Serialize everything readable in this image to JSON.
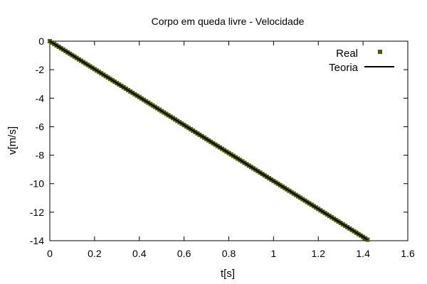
{
  "chart_data": {
    "type": "scatter",
    "title": "Corpo em queda livre - Velocidade",
    "xlabel": "t[s]",
    "ylabel": "v[m/s]",
    "xlim": [
      0,
      1.6
    ],
    "ylim": [
      -14,
      0
    ],
    "x_ticks": [
      "0",
      "0.2",
      "0.4",
      "0.6",
      "0.8",
      "1",
      "1.2",
      "1.4",
      "1.6"
    ],
    "y_ticks": [
      "0",
      "-2",
      "-4",
      "-6",
      "-8",
      "-10",
      "-12",
      "-14"
    ],
    "grid": false,
    "legend_position": "top-right",
    "series": [
      {
        "name": "Real",
        "kind": "points",
        "marker": "square",
        "color": "#4d5a00",
        "x_start": 0,
        "x_end": 1.42,
        "x_step": 0.01,
        "slope": -9.81,
        "intercept": 0
      },
      {
        "name": "Teoria",
        "kind": "line",
        "color": "#000000",
        "x": [
          0,
          1.42
        ],
        "y": [
          0,
          -13.93
        ]
      }
    ]
  }
}
